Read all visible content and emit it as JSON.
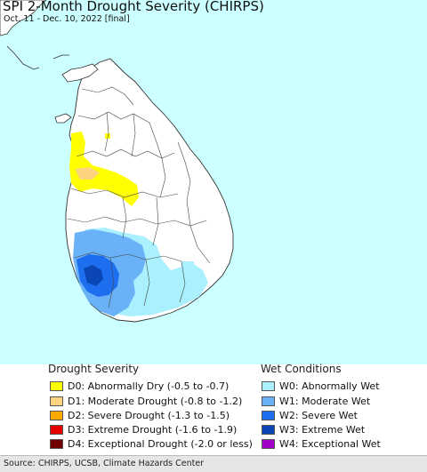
{
  "title": "SPI 2-Month Drought Severity (CHIRPS)",
  "subtitle": "Oct. 11 - Dec. 10, 2022 [final]",
  "map": {
    "ocean_color": "#ccffff",
    "land_color": "#ffffff",
    "region": "Sri Lanka"
  },
  "legend": {
    "drought": {
      "title": "Drought Severity",
      "items": [
        {
          "label": "D0: Abnormally Dry (-0.5 to -0.7)",
          "color": "#ffff00"
        },
        {
          "label": "D1: Moderate Drought (-0.8 to -1.2)",
          "color": "#fcd37f"
        },
        {
          "label": "D2: Severe Drought (-1.3 to -1.5)",
          "color": "#ffaa00"
        },
        {
          "label": "D3: Extreme Drought (-1.6 to -1.9)",
          "color": "#e60000"
        },
        {
          "label": "D4: Exceptional Drought (-2.0 or less)",
          "color": "#730000"
        }
      ]
    },
    "wet": {
      "title": "Wet Conditions",
      "items": [
        {
          "label": "W0: Abnormally Wet",
          "color": "#aaf0ff"
        },
        {
          "label": "W1: Moderate Wet",
          "color": "#6ab2f7"
        },
        {
          "label": "W2: Severe Wet",
          "color": "#1e6ef0"
        },
        {
          "label": "W3: Extreme Wet",
          "color": "#0a46b4"
        },
        {
          "label": "W4: Exceptional Wet",
          "color": "#a000c8"
        }
      ]
    }
  },
  "footer": "Source: CHIRPS, UCSB, Climate Hazards Center"
}
